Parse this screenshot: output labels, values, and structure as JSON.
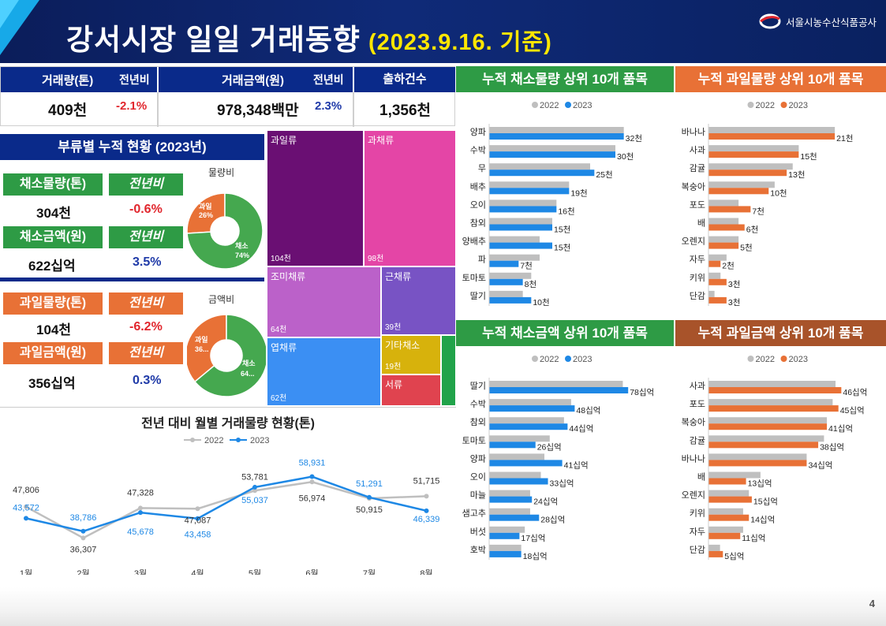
{
  "header": {
    "title": "강서시장 일일 거래동향",
    "date": "(2023.9.16. 기준)",
    "org": "서울시농수산식품공사"
  },
  "summary": {
    "volume_label": "거래량(톤)",
    "volume_yoy_label": "전년비",
    "volume_value": "409천",
    "volume_yoy": "-2.1%",
    "amount_label": "거래금액(원)",
    "amount_yoy_label": "전년비",
    "amount_value": "978,348백만",
    "amount_yoy": "2.3%",
    "shipments_label": "출하건수",
    "shipments_value": "1,356천"
  },
  "category": {
    "title": "부류별 누적 현황 (2023년)",
    "veg_volume_label": "채소물량(톤)",
    "veg_volume_yoy_label": "전년비",
    "veg_volume_value": "304천",
    "veg_volume_yoy": "-0.6%",
    "veg_amount_label": "채소금액(원)",
    "veg_amount_yoy_label": "전년비",
    "veg_amount_value": "622십억",
    "veg_amount_yoy": "3.5%",
    "fruit_volume_label": "과일물량(톤)",
    "fruit_volume_yoy_label": "전년비",
    "fruit_volume_value": "104천",
    "fruit_volume_yoy": "-6.2%",
    "fruit_amount_label": "과일금액(원)",
    "fruit_amount_yoy_label": "전년비",
    "fruit_amount_value": "356십억",
    "fruit_amount_yoy": "0.3%",
    "donut1_title": "물량비",
    "donut1_fruit_label": "과일",
    "donut1_fruit_pct": "26%",
    "donut1_veg_label": "채소",
    "donut1_veg_pct": "74%",
    "donut1_fruit_share": 0.26,
    "donut2_title": "금액비",
    "donut2_fruit_label": "과일",
    "donut2_fruit_pct": "36...",
    "donut2_veg_label": "채소",
    "donut2_veg_pct": "64...",
    "donut2_fruit_share": 0.36,
    "color_veg": "#45a84f",
    "color_fruit": "#e87136"
  },
  "treemap": [
    {
      "label": "과일류",
      "value": "104천",
      "color": "#6a0f73"
    },
    {
      "label": "과채류",
      "value": "98천",
      "color": "#e445a6"
    },
    {
      "label": "조미채류",
      "value": "64천",
      "color": "#bb61c9"
    },
    {
      "label": "근채류",
      "value": "39천",
      "color": "#7853c4"
    },
    {
      "label": "엽채류",
      "value": "62천",
      "color": "#3b8ff3"
    },
    {
      "label": "기타채소",
      "value": "19천",
      "color": "#d7b20c"
    },
    {
      "label": "서류",
      "value": "",
      "color": "#e0434f"
    }
  ],
  "line_chart": {
    "title": "전년 대비 월별 거래물량 현황(톤)",
    "legend_2022": "2022",
    "legend_2023": "2023",
    "color_2022": "#bfbfbf",
    "color_2023": "#1e88e5"
  },
  "veg_volume_title": "누적 채소물량 상위 10개 품목",
  "fruit_volume_title": "누적 과일물량 상위 10개 품목",
  "veg_amount_title": "누적 채소금액 상위 10개 품목",
  "fruit_amount_title": "누적 과일금액 상위 10개 품목",
  "legend_2022": "2022",
  "legend_2023": "2023",
  "page_number": "4",
  "chart_data": [
    {
      "type": "line",
      "title": "전년 대비 월별 거래물량 현황(톤)",
      "x": [
        "1월",
        "2월",
        "3월",
        "4월",
        "5월",
        "6월",
        "7월",
        "8월"
      ],
      "series": [
        {
          "name": "2022",
          "values": [
            47806,
            36307,
            47328,
            47087,
            53781,
            56974,
            50915,
            51715
          ],
          "labels": [
            "47,806",
            "36,307",
            "47,328",
            "47,087",
            "53,781",
            "56,974",
            "50,915",
            "51,715"
          ]
        },
        {
          "name": "2023",
          "values": [
            43572,
            38786,
            45678,
            43458,
            55037,
            58931,
            51291,
            46339
          ],
          "labels": [
            "43,572",
            "38,786",
            "45,678",
            "43,458",
            "55,037",
            "58,931",
            "51,291",
            "46,339"
          ]
        }
      ],
      "ylim": [
        30000,
        62000
      ]
    },
    {
      "type": "bar",
      "title": "누적 채소물량 상위 10개 품목",
      "categories": [
        "양파",
        "수박",
        "무",
        "배추",
        "오이",
        "참외",
        "양배추",
        "파",
        "토마토",
        "딸기"
      ],
      "series": [
        {
          "name": "2022",
          "values": [
            32,
            30,
            24,
            19,
            16,
            15,
            12,
            12,
            10,
            8
          ]
        },
        {
          "name": "2023",
          "values": [
            32,
            30,
            25,
            19,
            16,
            15,
            15,
            7,
            8,
            10
          ]
        }
      ],
      "labels": [
        "32천",
        "30천",
        "25천",
        "19천",
        "16천",
        "15천",
        "15천",
        "7천",
        "8천",
        "10천"
      ],
      "xlim": [
        0,
        36
      ]
    },
    {
      "type": "bar",
      "title": "누적 과일물량 상위 10개 품목",
      "categories": [
        "바나나",
        "사과",
        "감귤",
        "복숭아",
        "포도",
        "배",
        "오렌지",
        "자두",
        "키위",
        "단감"
      ],
      "series": [
        {
          "name": "2022",
          "values": [
            21,
            15,
            14,
            11,
            5,
            5,
            5,
            3,
            2,
            1
          ]
        },
        {
          "name": "2023",
          "values": [
            21,
            15,
            13,
            10,
            7,
            6,
            5,
            2,
            3,
            3
          ]
        }
      ],
      "labels": [
        "21천",
        "15천",
        "13천",
        "10천",
        "7천",
        "6천",
        "5천",
        "2천",
        "3천",
        "3천"
      ],
      "xlim": [
        0,
        24
      ]
    },
    {
      "type": "bar",
      "title": "누적 채소금액 상위 10개 품목",
      "categories": [
        "딸기",
        "수박",
        "참외",
        "토마토",
        "양파",
        "오이",
        "마늘",
        "샘고추",
        "버섯",
        "호박"
      ],
      "series": [
        {
          "name": "2022",
          "values": [
            75,
            46,
            42,
            34,
            31,
            29,
            23,
            23,
            20,
            18
          ]
        },
        {
          "name": "2023",
          "values": [
            78,
            48,
            44,
            26,
            41,
            33,
            24,
            28,
            17,
            18
          ]
        }
      ],
      "labels": [
        "78십억",
        "48십억",
        "44십억",
        "26십억",
        "41십억",
        "33십억",
        "24십억",
        "28십억",
        "17십억",
        "18십억"
      ],
      "xlim": [
        0,
        85
      ]
    },
    {
      "type": "bar",
      "title": "누적 과일금액 상위 10개 품목",
      "categories": [
        "사과",
        "포도",
        "복숭아",
        "감귤",
        "바나나",
        "배",
        "오렌지",
        "키위",
        "자두",
        "단감"
      ],
      "series": [
        {
          "name": "2022",
          "values": [
            44,
            43,
            41,
            40,
            34,
            18,
            14,
            12,
            12,
            4
          ]
        },
        {
          "name": "2023",
          "values": [
            46,
            45,
            41,
            38,
            34,
            13,
            15,
            14,
            11,
            5
          ]
        }
      ],
      "labels": [
        "46십억",
        "45십억",
        "41십억",
        "38십억",
        "34십억",
        "13십억",
        "15십억",
        "14십억",
        "11십억",
        "5십억"
      ],
      "xlim": [
        0,
        50
      ]
    }
  ]
}
